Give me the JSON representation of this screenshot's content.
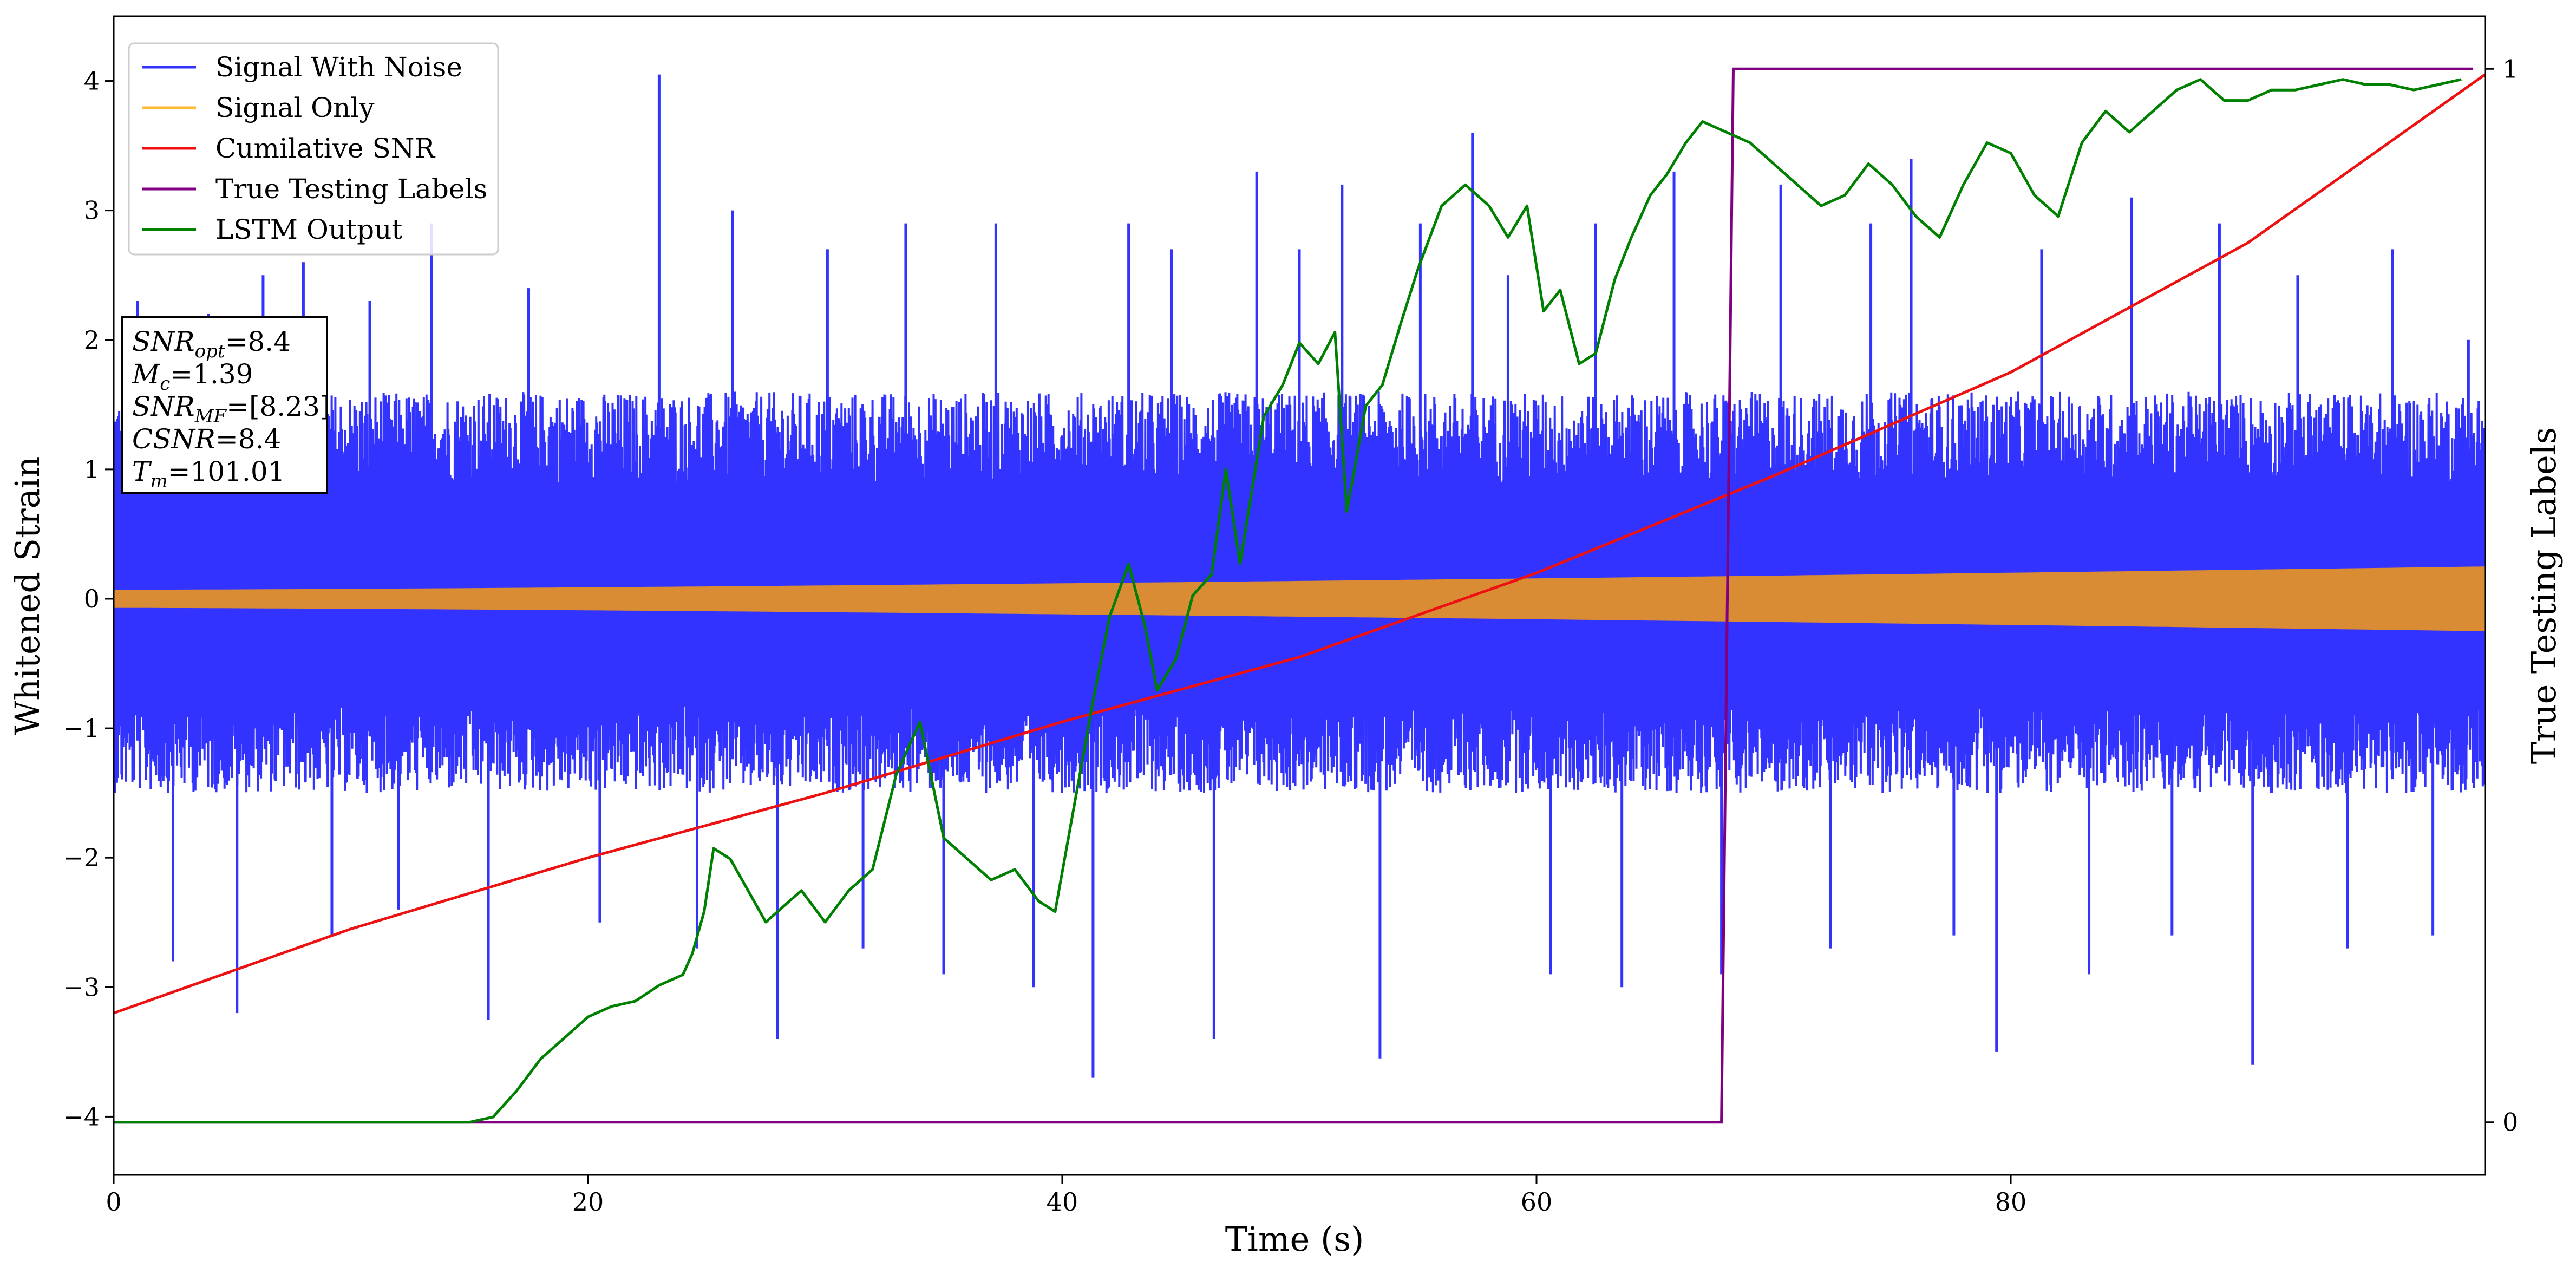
{
  "chart_data": {
    "type": "line",
    "xlabel": "Time (s)",
    "ylabel": "Whitened Strain",
    "y2label": "True Testing Labels",
    "xlim": [
      0,
      100
    ],
    "ylim": [
      -4.45,
      4.5
    ],
    "y2lim": [
      -0.05,
      1.05
    ],
    "x_ticks": [
      0,
      20,
      40,
      60,
      80
    ],
    "x_tick_labels": [
      "0",
      "20",
      "40",
      "60",
      "80"
    ],
    "y_ticks": [
      -4,
      -3,
      -2,
      -1,
      0,
      1,
      2,
      3,
      4
    ],
    "y_tick_labels": [
      "−4",
      "−3",
      "−2",
      "−1",
      "0",
      "1",
      "2",
      "3",
      "4"
    ],
    "y2_ticks": [
      0,
      1
    ],
    "y2_tick_labels": [
      "0",
      "1"
    ],
    "grid": false,
    "legend_position": "top-left",
    "colors": {
      "noise": "#3333ff",
      "signal": "#d98c33",
      "signal_legend": "#ffb833",
      "csnr": "#ee1111",
      "labels": "#800080",
      "lstm": "#008000"
    },
    "series": [
      {
        "name": "Signal With Noise",
        "axis": "left",
        "description_band": {
          "x_range": [
            0,
            100
          ],
          "typical_low": -1.5,
          "typical_high": 1.6
        },
        "spikes": [
          [
            1.0,
            2.3
          ],
          [
            2.5,
            -2.8
          ],
          [
            4.0,
            2.2
          ],
          [
            5.2,
            -3.2
          ],
          [
            6.3,
            2.5
          ],
          [
            8.0,
            2.6
          ],
          [
            9.2,
            -2.6
          ],
          [
            10.8,
            2.3
          ],
          [
            12.0,
            -2.4
          ],
          [
            13.4,
            2.9
          ],
          [
            15.8,
            -3.25
          ],
          [
            17.5,
            2.4
          ],
          [
            20.5,
            -2.5
          ],
          [
            23.0,
            4.05
          ],
          [
            24.6,
            -2.7
          ],
          [
            26.1,
            3.0
          ],
          [
            28.0,
            -3.4
          ],
          [
            30.1,
            2.7
          ],
          [
            31.6,
            -2.7
          ],
          [
            33.4,
            2.9
          ],
          [
            35.0,
            -2.9
          ],
          [
            37.2,
            2.9
          ],
          [
            38.8,
            -3.0
          ],
          [
            41.3,
            -3.7
          ],
          [
            42.8,
            2.9
          ],
          [
            44.6,
            2.7
          ],
          [
            46.4,
            -3.4
          ],
          [
            48.2,
            3.3
          ],
          [
            50.0,
            2.7
          ],
          [
            51.8,
            3.2
          ],
          [
            53.4,
            -3.55
          ],
          [
            55.1,
            2.9
          ],
          [
            57.3,
            3.6
          ],
          [
            58.8,
            2.5
          ],
          [
            60.6,
            -2.9
          ],
          [
            62.5,
            2.9
          ],
          [
            63.6,
            -3.0
          ],
          [
            65.8,
            3.3
          ],
          [
            67.8,
            -2.9
          ],
          [
            70.3,
            3.2
          ],
          [
            72.4,
            -2.7
          ],
          [
            74.1,
            2.9
          ],
          [
            75.8,
            3.4
          ],
          [
            77.6,
            -2.6
          ],
          [
            79.4,
            -3.5
          ],
          [
            81.3,
            2.7
          ],
          [
            83.3,
            -2.9
          ],
          [
            85.1,
            3.1
          ],
          [
            86.8,
            -2.6
          ],
          [
            88.8,
            2.9
          ],
          [
            90.2,
            -3.6
          ],
          [
            92.1,
            2.5
          ],
          [
            94.2,
            -2.7
          ],
          [
            96.1,
            2.7
          ],
          [
            97.8,
            -2.6
          ],
          [
            99.3,
            2.0
          ]
        ]
      },
      {
        "name": "Signal Only",
        "axis": "left",
        "amplitude_start": 0.07,
        "amplitude_end": 0.25,
        "x_range": [
          0,
          100
        ]
      },
      {
        "name": "Cumilative SNR",
        "axis": "left",
        "x": [
          0,
          10,
          20,
          30,
          40,
          50,
          60,
          70,
          80,
          90,
          100
        ],
        "y": [
          -3.2,
          -2.55,
          -2.0,
          -1.5,
          -0.95,
          -0.45,
          0.2,
          0.95,
          1.75,
          2.75,
          4.05
        ]
      },
      {
        "name": "True Testing Labels",
        "axis": "right",
        "x": [
          0,
          67.8,
          68.3,
          99.5
        ],
        "y": [
          0,
          0,
          1,
          1
        ]
      },
      {
        "name": "LSTM Output",
        "axis": "right",
        "x": [
          0,
          15.0,
          16.0,
          17.0,
          18.0,
          19.0,
          20.0,
          21.0,
          22.0,
          23.0,
          24.0,
          24.4,
          24.9,
          25.3,
          26.0,
          27.0,
          27.5,
          28.0,
          29.0,
          30.0,
          31.0,
          32.0,
          33.0,
          34.0,
          35.0,
          36.0,
          37.0,
          38.0,
          39.0,
          39.7,
          40.5,
          41.3,
          42.0,
          42.8,
          43.5,
          44.0,
          44.8,
          45.5,
          46.3,
          46.9,
          47.5,
          48.5,
          49.3,
          50.0,
          50.8,
          51.5,
          52.0,
          52.8,
          53.5,
          54.3,
          55.0,
          56.0,
          57.0,
          58.0,
          58.8,
          59.6,
          60.3,
          61.0,
          61.8,
          62.5,
          63.3,
          64.0,
          64.8,
          65.5,
          66.3,
          67.0,
          68.0,
          69.0,
          70.0,
          71.0,
          72.0,
          73.0,
          74.0,
          75.0,
          76.0,
          77.0,
          78.0,
          79.0,
          80.0,
          81.0,
          82.0,
          83.0,
          84.0,
          85.0,
          86.0,
          87.0,
          88.0,
          89.0,
          90.0,
          91.0,
          92.0,
          93.0,
          94.0,
          95.0,
          96.0,
          97.0,
          98.0,
          99.0
        ],
        "y": [
          0,
          0,
          0.005,
          0.03,
          0.06,
          0.08,
          0.1,
          0.11,
          0.115,
          0.13,
          0.14,
          0.16,
          0.2,
          0.26,
          0.25,
          0.21,
          0.19,
          0.2,
          0.22,
          0.19,
          0.22,
          0.24,
          0.33,
          0.38,
          0.27,
          0.25,
          0.23,
          0.24,
          0.21,
          0.2,
          0.3,
          0.4,
          0.48,
          0.53,
          0.47,
          0.41,
          0.44,
          0.5,
          0.52,
          0.62,
          0.53,
          0.67,
          0.7,
          0.74,
          0.72,
          0.75,
          0.58,
          0.68,
          0.7,
          0.76,
          0.81,
          0.87,
          0.89,
          0.87,
          0.84,
          0.87,
          0.77,
          0.79,
          0.72,
          0.73,
          0.8,
          0.84,
          0.88,
          0.9,
          0.93,
          0.95,
          0.94,
          0.93,
          0.91,
          0.89,
          0.87,
          0.88,
          0.91,
          0.89,
          0.86,
          0.84,
          0.89,
          0.93,
          0.92,
          0.88,
          0.86,
          0.93,
          0.96,
          0.94,
          0.96,
          0.98,
          0.99,
          0.97,
          0.97,
          0.98,
          0.98,
          0.985,
          0.99,
          0.985,
          0.985,
          0.98,
          0.985,
          0.99
        ]
      }
    ],
    "legend": [
      {
        "label": "Signal With Noise",
        "color": "#3333ff"
      },
      {
        "label": "Signal Only",
        "color": "#ffb833"
      },
      {
        "label": "Cumilative SNR",
        "color": "#ee1111"
      },
      {
        "label": "True Testing Labels",
        "color": "#800080"
      },
      {
        "label": "LSTM Output",
        "color": "#008000"
      }
    ],
    "info_box": [
      {
        "base": "SNR",
        "sub": "opt",
        "value": "=8.4"
      },
      {
        "base": "M",
        "sub": "c",
        "value": "=1.39"
      },
      {
        "base": "SNR",
        "sub": "MF",
        "value": "=[8.23]"
      },
      {
        "base": "CSNR",
        "sub": "",
        "value": "=8.4"
      },
      {
        "base": "T",
        "sub": "m",
        "value": "=101.01"
      }
    ]
  }
}
